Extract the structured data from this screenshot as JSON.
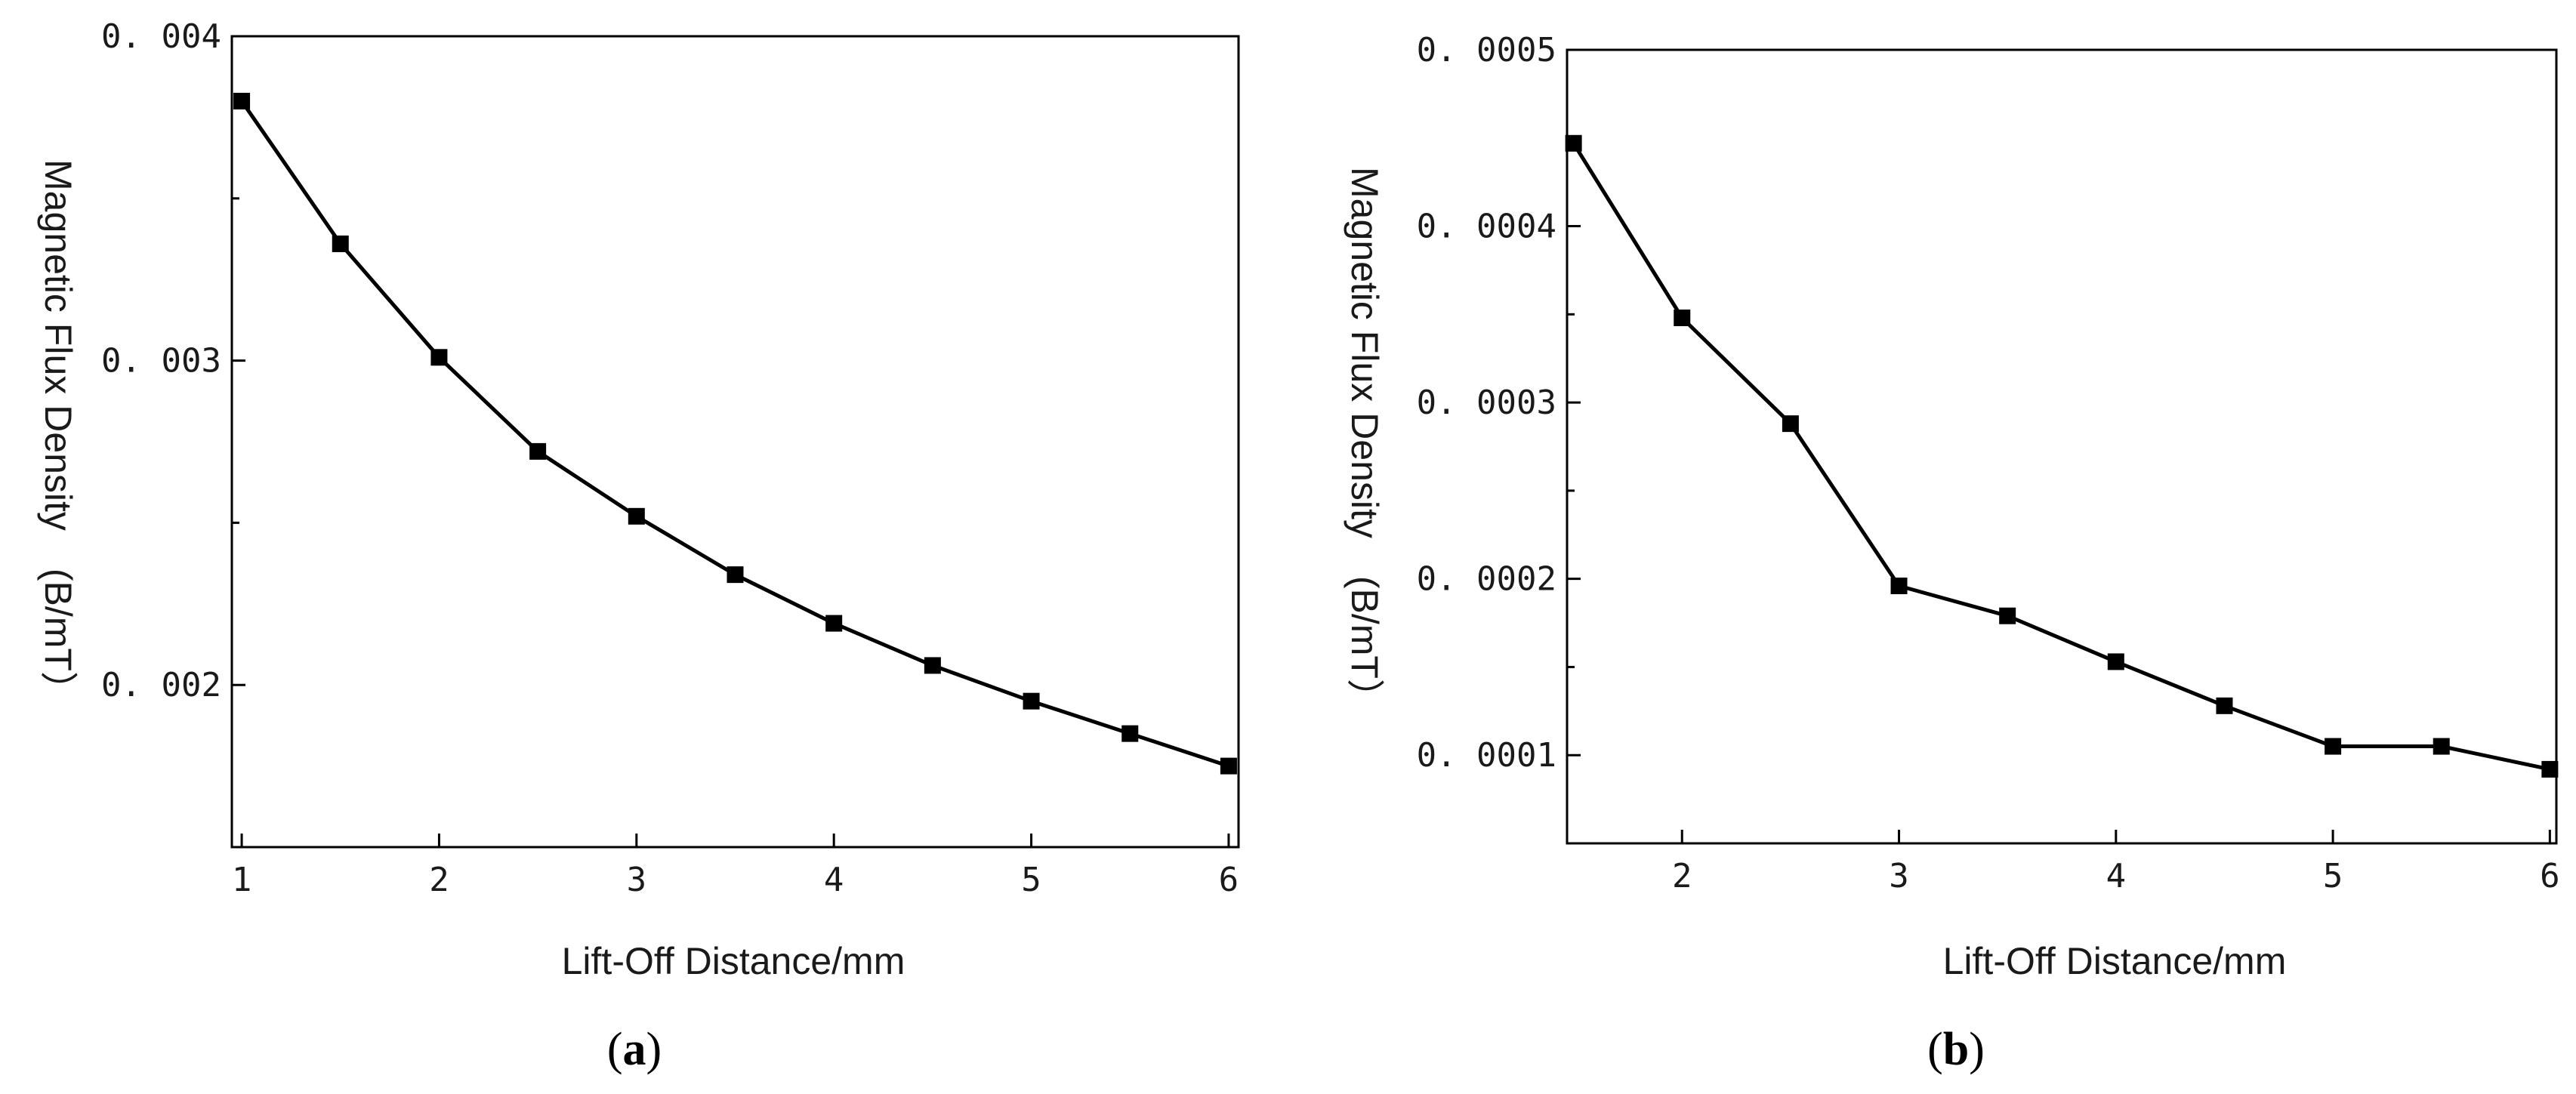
{
  "chart_data": [
    {
      "type": "line",
      "xlabel": "Lift-Off Distance/mm",
      "ylabel": "Magnetic Flux Density　(B/mT）",
      "xlim": [
        0.95,
        6.05
      ],
      "ylim": [
        0.0015,
        0.004
      ],
      "x_ticks": [
        1,
        2,
        3,
        4,
        5,
        6
      ],
      "x_tick_labels": [
        "1",
        "2",
        "3",
        "4",
        "5",
        "6"
      ],
      "y_ticks": [
        0.002,
        0.003,
        0.004
      ],
      "y_tick_labels": [
        "0. 002",
        "0. 003",
        "0. 004"
      ],
      "y_minor_ticks": [
        0.0025,
        0.0035
      ],
      "grid": false,
      "panel_label": "a",
      "series": [
        {
          "x": [
            1,
            1.5,
            2,
            2.5,
            3,
            3.5,
            4,
            4.5,
            5,
            5.5,
            6
          ],
          "values": [
            0.0038,
            0.00336,
            0.00301,
            0.00272,
            0.00252,
            0.00234,
            0.00219,
            0.00206,
            0.00195,
            0.00185,
            0.00175
          ]
        }
      ]
    },
    {
      "type": "line",
      "xlabel": "Lift-Off Distance/mm",
      "ylabel": "Magnetic Flux Density　(B/mT）",
      "xlim": [
        1.47,
        6.03
      ],
      "ylim": [
        5e-05,
        0.0005
      ],
      "x_ticks": [
        2,
        3,
        4,
        5,
        6
      ],
      "x_tick_labels": [
        "2",
        "3",
        "4",
        "5",
        "6"
      ],
      "y_ticks": [
        0.0001,
        0.0002,
        0.0003,
        0.0004,
        0.0005
      ],
      "y_tick_labels": [
        "0. 0001",
        "0. 0002",
        "0. 0003",
        "0. 0004",
        "0. 0005"
      ],
      "y_minor_ticks": [
        0.00015,
        0.00025,
        0.00035,
        0.00045
      ],
      "grid": false,
      "panel_label": "b",
      "series": [
        {
          "x": [
            1.5,
            2,
            2.5,
            3,
            3.5,
            4,
            4.5,
            5,
            5.5,
            6
          ],
          "values": [
            0.000447,
            0.000348,
            0.000288,
            0.000196,
            0.000179,
            0.000153,
            0.000128,
            0.000105,
            0.000105,
            9.2e-05
          ]
        }
      ]
    }
  ]
}
